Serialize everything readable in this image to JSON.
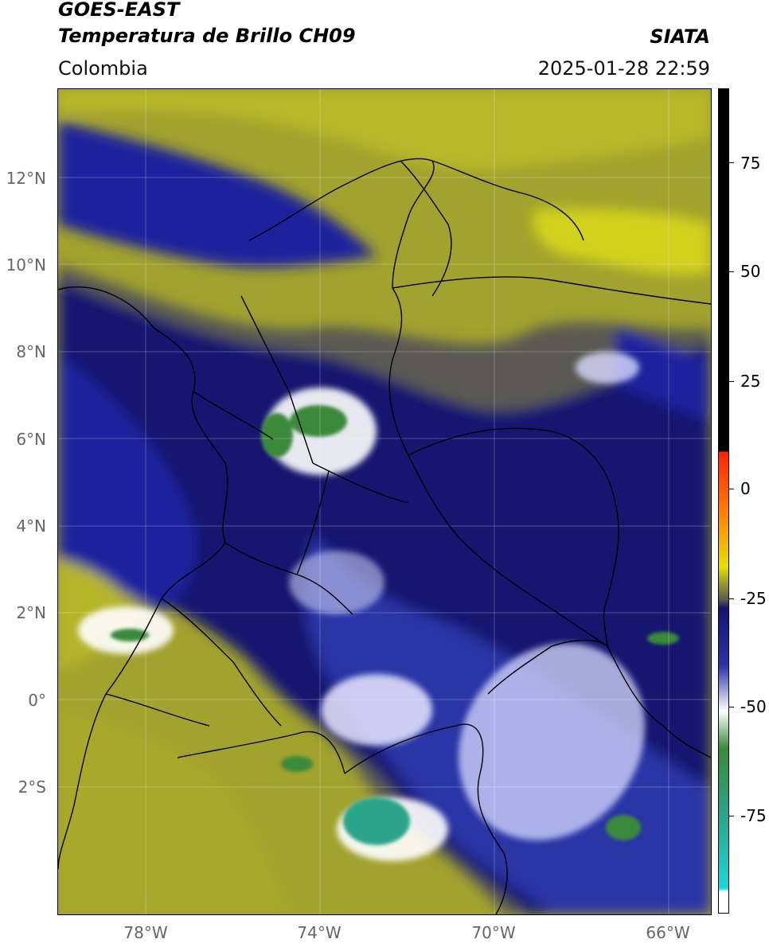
{
  "header": {
    "title_line1": "GOES-EAST",
    "title_line2": "Temperatura de Brillo CH09",
    "region": "Colombia",
    "agency": "SIATA",
    "datetime": "2025-01-28 22:59"
  },
  "axes": {
    "lat_labels": [
      "12°N",
      "10°N",
      "8°N",
      "6°N",
      "4°N",
      "2°N",
      "0°",
      "2°S"
    ],
    "lon_labels": [
      "78°W",
      "74°W",
      "70°W",
      "66°W"
    ]
  },
  "colorbar": {
    "labels": [
      "75",
      "50",
      "25",
      "0",
      "-25",
      "-50",
      "-75"
    ],
    "colors": {
      "black": "#000000",
      "red": "#ff2200",
      "orange": "#ff8800",
      "yellow": "#e8e000",
      "olive": "#9a9a2a",
      "gray": "#5a5a52",
      "navy": "#141470",
      "blue": "#2a34a6",
      "white": "#ffffff",
      "green": "#3a8a3a",
      "teal": "#2aa58a",
      "cyan": "#18d8d8"
    }
  }
}
